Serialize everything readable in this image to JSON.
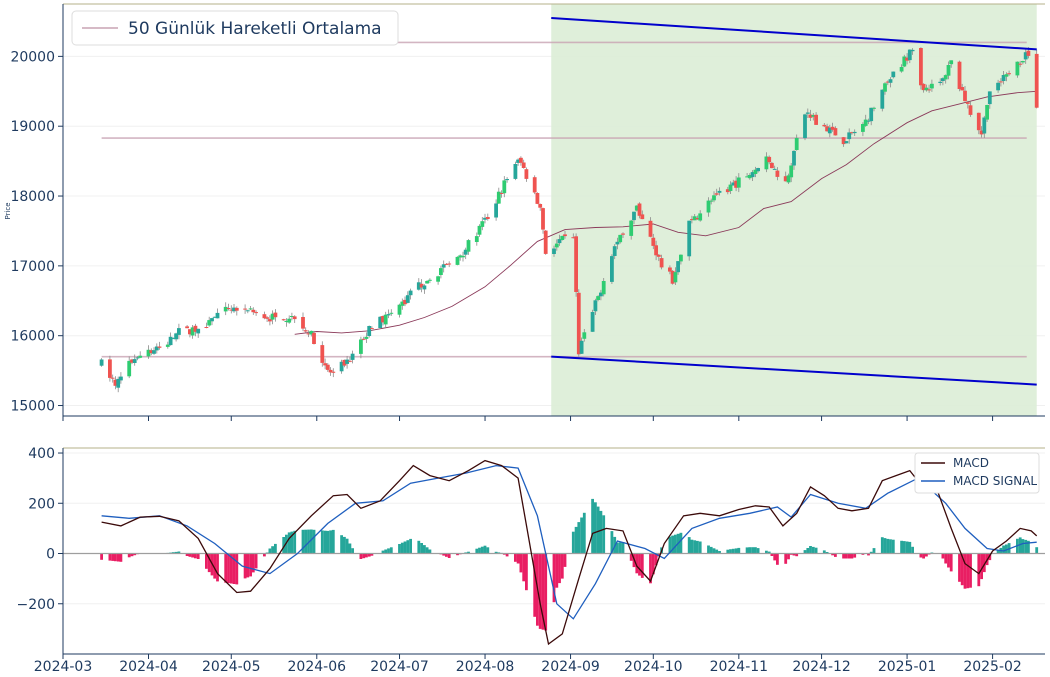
{
  "chart_data": [
    {
      "type": "candlestick",
      "ylabel": "Price",
      "ylim": [
        14850,
        20750
      ],
      "yticks": [
        15000,
        16000,
        17000,
        18000,
        19000,
        20000
      ],
      "ytick_labels": [
        "15000",
        "16000",
        "17000",
        "18000",
        "19000",
        "20000"
      ],
      "legend": {
        "position": "top-left",
        "entries": [
          "50 Günlük Hareketli Ortalama"
        ]
      },
      "colors": {
        "up": "#26a69a",
        "up_bright": "#2ecc71",
        "down": "#ef5350",
        "ma": "#8b3a5a",
        "channel": "#0000cc",
        "channel_fill": "#dcedd6",
        "hlines": "#c9a3b3"
      },
      "anchors": [
        [
          "2024-03-15",
          15600
        ],
        [
          "2024-03-20",
          15300
        ],
        [
          "2024-03-28",
          15750
        ],
        [
          "2024-04-05",
          15800
        ],
        [
          "2024-04-12",
          16050
        ],
        [
          "2024-04-19",
          16100
        ],
        [
          "2024-04-26",
          16300
        ],
        [
          "2024-05-03",
          16400
        ],
        [
          "2024-05-10",
          16300
        ],
        [
          "2024-05-17",
          16250
        ],
        [
          "2024-05-24",
          16300
        ],
        [
          "2024-05-31",
          15950
        ],
        [
          "2024-06-03",
          15550
        ],
        [
          "2024-06-07",
          15450
        ],
        [
          "2024-06-14",
          15700
        ],
        [
          "2024-06-21",
          16150
        ],
        [
          "2024-06-28",
          16300
        ],
        [
          "2024-07-05",
          16600
        ],
        [
          "2024-07-12",
          16850
        ],
        [
          "2024-07-19",
          17000
        ],
        [
          "2024-07-26",
          17300
        ],
        [
          "2024-08-02",
          17700
        ],
        [
          "2024-08-07",
          18100
        ],
        [
          "2024-08-13",
          18550
        ],
        [
          "2024-08-16",
          18300
        ],
        [
          "2024-08-21",
          17850
        ],
        [
          "2024-08-23",
          17200
        ],
        [
          "2024-08-28",
          17350
        ],
        [
          "2024-09-02",
          17400
        ],
        [
          "2024-09-04",
          15800
        ],
        [
          "2024-09-06",
          16000
        ],
        [
          "2024-09-11",
          16550
        ],
        [
          "2024-09-16",
          17200
        ],
        [
          "2024-09-20",
          17500
        ],
        [
          "2024-09-25",
          17800
        ],
        [
          "2024-09-30",
          17400
        ],
        [
          "2024-10-04",
          17000
        ],
        [
          "2024-10-08",
          16800
        ],
        [
          "2024-10-14",
          17600
        ],
        [
          "2024-10-21",
          17900
        ],
        [
          "2024-10-28",
          18100
        ],
        [
          "2024-11-04",
          18300
        ],
        [
          "2024-11-11",
          18500
        ],
        [
          "2024-11-18",
          18200
        ],
        [
          "2024-11-25",
          19200
        ],
        [
          "2024-12-02",
          19000
        ],
        [
          "2024-12-09",
          18800
        ],
        [
          "2024-12-16",
          19000
        ],
        [
          "2024-12-23",
          19500
        ],
        [
          "2024-12-30",
          19900
        ],
        [
          "2025-01-03",
          20100
        ],
        [
          "2025-01-07",
          19500
        ],
        [
          "2025-01-13",
          19600
        ],
        [
          "2025-01-17",
          19900
        ],
        [
          "2025-01-21",
          19500
        ],
        [
          "2025-01-24",
          19200
        ],
        [
          "2025-01-28",
          18900
        ],
        [
          "2025-01-31",
          19500
        ],
        [
          "2025-02-05",
          19700
        ],
        [
          "2025-02-10",
          19900
        ],
        [
          "2025-02-14",
          20050
        ],
        [
          "2025-02-17",
          19300
        ]
      ],
      "moving_average_50": [
        [
          "2024-05-24",
          16020
        ],
        [
          "2024-06-01",
          16060
        ],
        [
          "2024-06-10",
          16040
        ],
        [
          "2024-06-20",
          16070
        ],
        [
          "2024-07-01",
          16150
        ],
        [
          "2024-07-10",
          16260
        ],
        [
          "2024-07-20",
          16420
        ],
        [
          "2024-08-01",
          16700
        ],
        [
          "2024-08-10",
          17000
        ],
        [
          "2024-08-20",
          17350
        ],
        [
          "2024-08-30",
          17520
        ],
        [
          "2024-09-10",
          17550
        ],
        [
          "2024-09-20",
          17560
        ],
        [
          "2024-10-01",
          17600
        ],
        [
          "2024-10-10",
          17480
        ],
        [
          "2024-10-20",
          17430
        ],
        [
          "2024-11-01",
          17550
        ],
        [
          "2024-11-10",
          17820
        ],
        [
          "2024-11-20",
          17920
        ],
        [
          "2024-12-01",
          18250
        ],
        [
          "2024-12-10",
          18450
        ],
        [
          "2024-12-20",
          18750
        ],
        [
          "2025-01-01",
          19050
        ],
        [
          "2025-01-10",
          19220
        ],
        [
          "2025-01-20",
          19320
        ],
        [
          "2025-01-30",
          19420
        ],
        [
          "2025-02-10",
          19480
        ],
        [
          "2025-02-17",
          19500
        ]
      ],
      "horizontal_levels": [
        20200,
        18830,
        15700
      ],
      "horizontal_levels_start": "2024-03-15",
      "channel": {
        "upper": [
          [
            "2024-08-25",
            20550
          ],
          [
            "2025-02-17",
            20100
          ]
        ],
        "lower": [
          [
            "2024-08-25",
            15700
          ],
          [
            "2025-02-17",
            15300
          ]
        ],
        "shade_from": "2024-08-25",
        "shade_to": "2025-02-17"
      }
    },
    {
      "type": "macd",
      "ylim": [
        -400,
        420
      ],
      "yticks": [
        -200,
        0,
        200,
        400
      ],
      "ytick_labels": [
        "−200",
        "0",
        "200",
        "400"
      ],
      "legend": {
        "position": "top-right",
        "entries": [
          "MACD",
          "MACD SIGNAL"
        ]
      },
      "colors": {
        "macd": "#3b0a0a",
        "signal": "#1f5fbf",
        "hist_pos": "#26a69a",
        "hist_neg": "#e91e63"
      },
      "macd": [
        [
          "2024-03-15",
          125
        ],
        [
          "2024-03-22",
          110
        ],
        [
          "2024-03-29",
          145
        ],
        [
          "2024-04-05",
          148
        ],
        [
          "2024-04-12",
          130
        ],
        [
          "2024-04-19",
          60
        ],
        [
          "2024-04-26",
          -80
        ],
        [
          "2024-05-03",
          -155
        ],
        [
          "2024-05-08",
          -150
        ],
        [
          "2024-05-15",
          -60
        ],
        [
          "2024-05-22",
          60
        ],
        [
          "2024-05-30",
          150
        ],
        [
          "2024-06-07",
          230
        ],
        [
          "2024-06-12",
          235
        ],
        [
          "2024-06-17",
          180
        ],
        [
          "2024-06-24",
          210
        ],
        [
          "2024-07-01",
          290
        ],
        [
          "2024-07-06",
          350
        ],
        [
          "2024-07-12",
          310
        ],
        [
          "2024-07-19",
          290
        ],
        [
          "2024-07-26",
          330
        ],
        [
          "2024-08-01",
          370
        ],
        [
          "2024-08-07",
          350
        ],
        [
          "2024-08-13",
          300
        ],
        [
          "2024-08-17",
          50
        ],
        [
          "2024-08-21",
          -200
        ],
        [
          "2024-08-24",
          -360
        ],
        [
          "2024-08-29",
          -320
        ],
        [
          "2024-09-04",
          -100
        ],
        [
          "2024-09-09",
          80
        ],
        [
          "2024-09-14",
          100
        ],
        [
          "2024-09-20",
          90
        ],
        [
          "2024-09-25",
          -50
        ],
        [
          "2024-09-30",
          -110
        ],
        [
          "2024-10-05",
          40
        ],
        [
          "2024-10-12",
          150
        ],
        [
          "2024-10-18",
          160
        ],
        [
          "2024-10-25",
          150
        ],
        [
          "2024-11-01",
          175
        ],
        [
          "2024-11-07",
          190
        ],
        [
          "2024-11-12",
          185
        ],
        [
          "2024-11-17",
          110
        ],
        [
          "2024-11-22",
          160
        ],
        [
          "2024-11-27",
          265
        ],
        [
          "2024-12-02",
          230
        ],
        [
          "2024-12-07",
          180
        ],
        [
          "2024-12-12",
          170
        ],
        [
          "2024-12-18",
          180
        ],
        [
          "2024-12-23",
          290
        ],
        [
          "2024-12-28",
          310
        ],
        [
          "2025-01-02",
          330
        ],
        [
          "2025-01-07",
          260
        ],
        [
          "2025-01-12",
          250
        ],
        [
          "2025-01-17",
          100
        ],
        [
          "2025-01-22",
          -40
        ],
        [
          "2025-01-27",
          -80
        ],
        [
          "2025-02-01",
          10
        ],
        [
          "2025-02-06",
          50
        ],
        [
          "2025-02-11",
          100
        ],
        [
          "2025-02-15",
          90
        ],
        [
          "2025-02-17",
          70
        ]
      ],
      "signal": [
        [
          "2024-03-15",
          150
        ],
        [
          "2024-03-25",
          140
        ],
        [
          "2024-04-05",
          150
        ],
        [
          "2024-04-15",
          110
        ],
        [
          "2024-04-25",
          40
        ],
        [
          "2024-05-05",
          -50
        ],
        [
          "2024-05-15",
          -80
        ],
        [
          "2024-05-25",
          0
        ],
        [
          "2024-06-05",
          120
        ],
        [
          "2024-06-15",
          200
        ],
        [
          "2024-06-25",
          210
        ],
        [
          "2024-07-05",
          280
        ],
        [
          "2024-07-15",
          300
        ],
        [
          "2024-07-25",
          320
        ],
        [
          "2024-08-05",
          350
        ],
        [
          "2024-08-13",
          340
        ],
        [
          "2024-08-20",
          150
        ],
        [
          "2024-08-27",
          -200
        ],
        [
          "2024-09-02",
          -260
        ],
        [
          "2024-09-10",
          -120
        ],
        [
          "2024-09-18",
          50
        ],
        [
          "2024-09-28",
          20
        ],
        [
          "2024-10-05",
          -20
        ],
        [
          "2024-10-15",
          100
        ],
        [
          "2024-10-25",
          140
        ],
        [
          "2024-11-05",
          160
        ],
        [
          "2024-11-15",
          185
        ],
        [
          "2024-11-20",
          145
        ],
        [
          "2024-11-27",
          235
        ],
        [
          "2024-12-07",
          200
        ],
        [
          "2024-12-17",
          180
        ],
        [
          "2024-12-25",
          240
        ],
        [
          "2025-01-05",
          300
        ],
        [
          "2025-01-15",
          200
        ],
        [
          "2025-01-22",
          100
        ],
        [
          "2025-01-30",
          20
        ],
        [
          "2025-02-05",
          10
        ],
        [
          "2025-02-12",
          40
        ],
        [
          "2025-02-17",
          45
        ]
      ]
    }
  ],
  "x_axis": {
    "start": "2024-03-01",
    "end": "2025-02-20",
    "ticks": [
      "2024-03-01",
      "2024-04-01",
      "2024-05-01",
      "2024-06-01",
      "2024-07-01",
      "2024-08-01",
      "2024-09-01",
      "2024-10-01",
      "2024-11-01",
      "2024-12-01",
      "2025-01-01",
      "2025-02-01"
    ],
    "tick_labels": [
      "2024-03",
      "2024-04",
      "2024-05",
      "2024-06",
      "2024-07",
      "2024-08",
      "2024-09",
      "2024-10",
      "2024-11",
      "2024-12",
      "2025-01",
      "2025-02"
    ]
  }
}
